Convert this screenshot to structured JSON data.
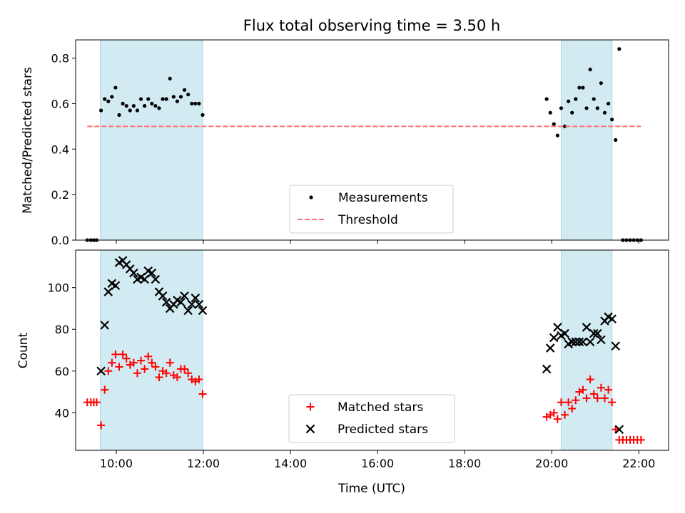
{
  "chart_data": [
    {
      "type": "scatter",
      "title": "Flux total observing time = 3.50 h",
      "xlabel": "",
      "ylabel": "Matched/Predicted stars",
      "xlim": [
        "09:04",
        "22:41"
      ],
      "ylim": [
        0,
        0.88
      ],
      "yticks": [
        0.0,
        0.2,
        0.4,
        0.6,
        0.8
      ],
      "ytick_labels": [
        "0.0",
        "0.2",
        "0.4",
        "0.6",
        "0.8"
      ],
      "x_tick_labels_shown": false,
      "shaded_intervals": [
        [
          "09:38",
          "11:59"
        ],
        [
          "20:13",
          "21:23"
        ]
      ],
      "shade_color": "#add8e6",
      "legend_position": "lower center",
      "series": [
        {
          "name": "Measurements",
          "marker": "dot",
          "color": "#000000",
          "points": [
            [
              "09:20",
              0.0
            ],
            [
              "09:25",
              0.0
            ],
            [
              "09:29",
              0.0
            ],
            [
              "09:33",
              0.0
            ],
            [
              "09:39",
              0.57
            ],
            [
              "09:44",
              0.62
            ],
            [
              "09:49",
              0.61
            ],
            [
              "09:54",
              0.63
            ],
            [
              "09:59",
              0.67
            ],
            [
              "10:04",
              0.55
            ],
            [
              "10:09",
              0.6
            ],
            [
              "10:14",
              0.59
            ],
            [
              "10:19",
              0.57
            ],
            [
              "10:24",
              0.59
            ],
            [
              "10:29",
              0.57
            ],
            [
              "10:34",
              0.62
            ],
            [
              "10:39",
              0.59
            ],
            [
              "10:44",
              0.62
            ],
            [
              "10:49",
              0.6
            ],
            [
              "10:54",
              0.59
            ],
            [
              "10:59",
              0.58
            ],
            [
              "11:04",
              0.62
            ],
            [
              "11:09",
              0.62
            ],
            [
              "11:14",
              0.71
            ],
            [
              "11:19",
              0.63
            ],
            [
              "11:24",
              0.61
            ],
            [
              "11:29",
              0.63
            ],
            [
              "11:34",
              0.66
            ],
            [
              "11:39",
              0.64
            ],
            [
              "11:44",
              0.6
            ],
            [
              "11:49",
              0.6
            ],
            [
              "11:54",
              0.6
            ],
            [
              "11:59",
              0.55
            ],
            [
              "19:53",
              0.62
            ],
            [
              "19:58",
              0.56
            ],
            [
              "20:03",
              0.51
            ],
            [
              "20:08",
              0.46
            ],
            [
              "20:13",
              0.58
            ],
            [
              "20:18",
              0.5
            ],
            [
              "20:23",
              0.61
            ],
            [
              "20:28",
              0.56
            ],
            [
              "20:33",
              0.62
            ],
            [
              "20:38",
              0.67
            ],
            [
              "20:43",
              0.67
            ],
            [
              "20:48",
              0.58
            ],
            [
              "20:53",
              0.75
            ],
            [
              "20:58",
              0.62
            ],
            [
              "21:03",
              0.58
            ],
            [
              "21:08",
              0.69
            ],
            [
              "21:13",
              0.56
            ],
            [
              "21:18",
              0.6
            ],
            [
              "21:23",
              0.53
            ],
            [
              "21:28",
              0.44
            ],
            [
              "21:33",
              0.84
            ],
            [
              "21:38",
              0.0
            ],
            [
              "21:43",
              0.0
            ],
            [
              "21:48",
              0.0
            ],
            [
              "21:53",
              0.0
            ],
            [
              "21:58",
              0.0
            ],
            [
              "22:03",
              0.0
            ]
          ]
        },
        {
          "name": "Threshold",
          "type": "line",
          "style": "dashed",
          "color": "#ff7070",
          "points": [
            [
              "09:20",
              0.5
            ],
            [
              "22:03",
              0.5
            ]
          ]
        }
      ]
    },
    {
      "type": "scatter",
      "title": "",
      "xlabel": "Time (UTC)",
      "ylabel": "Count",
      "xlim": [
        "09:04",
        "22:41"
      ],
      "ylim": [
        22,
        118
      ],
      "yticks": [
        40,
        60,
        80,
        100
      ],
      "ytick_labels": [
        "40",
        "60",
        "80",
        "100"
      ],
      "xticks": [
        "10:00",
        "12:00",
        "14:00",
        "16:00",
        "18:00",
        "20:00",
        "22:00"
      ],
      "xtick_labels": [
        "10:00",
        "12:00",
        "14:00",
        "16:00",
        "18:00",
        "20:00",
        "22:00"
      ],
      "shaded_intervals": [
        [
          "09:38",
          "11:59"
        ],
        [
          "20:13",
          "21:23"
        ]
      ],
      "shade_color": "#add8e6",
      "legend_position": "lower center",
      "series": [
        {
          "name": "Matched stars",
          "marker": "plus",
          "color": "#ff0000",
          "points": [
            [
              "09:20",
              45
            ],
            [
              "09:25",
              45
            ],
            [
              "09:29",
              45
            ],
            [
              "09:33",
              45
            ],
            [
              "09:39",
              34
            ],
            [
              "09:44",
              51
            ],
            [
              "09:49",
              60
            ],
            [
              "09:54",
              64
            ],
            [
              "09:59",
              68
            ],
            [
              "10:04",
              62
            ],
            [
              "10:09",
              68
            ],
            [
              "10:14",
              66
            ],
            [
              "10:19",
              63
            ],
            [
              "10:24",
              64
            ],
            [
              "10:29",
              59
            ],
            [
              "10:34",
              65
            ],
            [
              "10:39",
              61
            ],
            [
              "10:44",
              67
            ],
            [
              "10:49",
              64
            ],
            [
              "10:54",
              62
            ],
            [
              "10:59",
              57
            ],
            [
              "11:04",
              60
            ],
            [
              "11:09",
              59
            ],
            [
              "11:14",
              64
            ],
            [
              "11:19",
              58
            ],
            [
              "11:24",
              57
            ],
            [
              "11:29",
              61
            ],
            [
              "11:34",
              61
            ],
            [
              "11:39",
              59
            ],
            [
              "11:44",
              56
            ],
            [
              "11:49",
              55
            ],
            [
              "11:54",
              56
            ],
            [
              "11:59",
              49
            ],
            [
              "19:53",
              38
            ],
            [
              "19:58",
              39
            ],
            [
              "20:03",
              40
            ],
            [
              "20:08",
              37
            ],
            [
              "20:13",
              45
            ],
            [
              "20:18",
              39
            ],
            [
              "20:23",
              45
            ],
            [
              "20:28",
              42
            ],
            [
              "20:33",
              46
            ],
            [
              "20:38",
              50
            ],
            [
              "20:43",
              51
            ],
            [
              "20:48",
              47
            ],
            [
              "20:53",
              56
            ],
            [
              "20:58",
              49
            ],
            [
              "21:03",
              47
            ],
            [
              "21:08",
              52
            ],
            [
              "21:13",
              47
            ],
            [
              "21:18",
              51
            ],
            [
              "21:23",
              45
            ],
            [
              "21:28",
              32
            ],
            [
              "21:33",
              27
            ],
            [
              "21:38",
              27
            ],
            [
              "21:43",
              27
            ],
            [
              "21:48",
              27
            ],
            [
              "21:53",
              27
            ],
            [
              "21:58",
              27
            ],
            [
              "22:03",
              27
            ]
          ]
        },
        {
          "name": "Predicted stars",
          "marker": "x",
          "color": "#000000",
          "points": [
            [
              "09:39",
              60
            ],
            [
              "09:44",
              82
            ],
            [
              "09:49",
              98
            ],
            [
              "09:54",
              102
            ],
            [
              "09:59",
              101
            ],
            [
              "10:04",
              112
            ],
            [
              "10:09",
              113
            ],
            [
              "10:14",
              111
            ],
            [
              "10:19",
              109
            ],
            [
              "10:24",
              107
            ],
            [
              "10:29",
              104
            ],
            [
              "10:34",
              105
            ],
            [
              "10:39",
              104
            ],
            [
              "10:44",
              108
            ],
            [
              "10:49",
              107
            ],
            [
              "10:54",
              104
            ],
            [
              "10:59",
              98
            ],
            [
              "11:04",
              96
            ],
            [
              "11:09",
              93
            ],
            [
              "11:14",
              90
            ],
            [
              "11:19",
              92
            ],
            [
              "11:24",
              94
            ],
            [
              "11:29",
              93
            ],
            [
              "11:34",
              96
            ],
            [
              "11:39",
              89
            ],
            [
              "11:44",
              92
            ],
            [
              "11:49",
              95
            ],
            [
              "11:54",
              92
            ],
            [
              "11:59",
              89
            ],
            [
              "19:53",
              61
            ],
            [
              "19:58",
              71
            ],
            [
              "20:03",
              76
            ],
            [
              "20:08",
              81
            ],
            [
              "20:13",
              77
            ],
            [
              "20:18",
              78
            ],
            [
              "20:23",
              73
            ],
            [
              "20:28",
              74
            ],
            [
              "20:33",
              74
            ],
            [
              "20:38",
              74
            ],
            [
              "20:43",
              74
            ],
            [
              "20:48",
              81
            ],
            [
              "20:53",
              74
            ],
            [
              "20:58",
              78
            ],
            [
              "21:03",
              78
            ],
            [
              "21:08",
              75
            ],
            [
              "21:13",
              84
            ],
            [
              "21:18",
              86
            ],
            [
              "21:23",
              85
            ],
            [
              "21:28",
              72
            ],
            [
              "21:33",
              32
            ]
          ]
        }
      ]
    }
  ]
}
